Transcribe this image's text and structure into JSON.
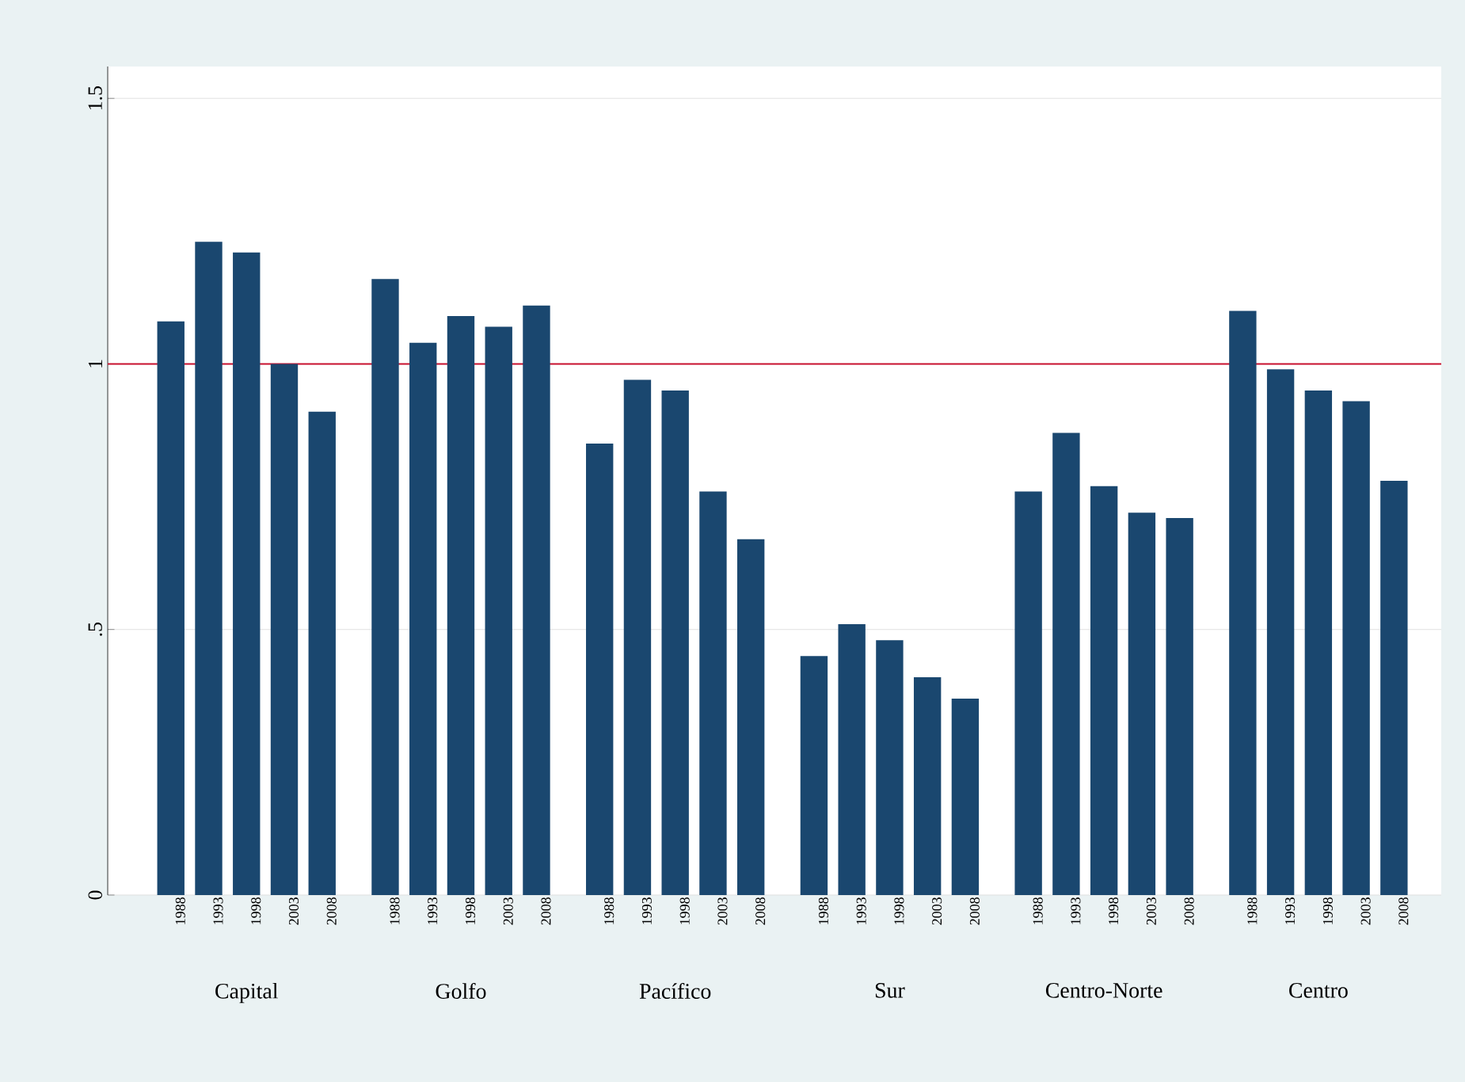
{
  "chart_data": {
    "type": "bar",
    "categories": [
      "Capital",
      "Golfo",
      "Pacífico",
      "Sur",
      "Centro-Norte",
      "Centro"
    ],
    "series": [
      {
        "name": "1988",
        "color": "#1a476f",
        "values": [
          1.08,
          1.16,
          0.85,
          0.45,
          0.76,
          1.1
        ]
      },
      {
        "name": "1993",
        "color": "#1a476f",
        "values": [
          1.23,
          1.04,
          0.97,
          0.51,
          0.87,
          0.99
        ]
      },
      {
        "name": "1998",
        "color": "#1a476f",
        "values": [
          1.21,
          1.09,
          0.95,
          0.48,
          0.77,
          0.95
        ]
      },
      {
        "name": "2003",
        "color": "#1a476f",
        "values": [
          1.0,
          1.07,
          0.76,
          0.41,
          0.72,
          0.93
        ]
      },
      {
        "name": "2008",
        "color": "#1a476f",
        "values": [
          0.91,
          1.11,
          0.67,
          0.37,
          0.71,
          0.78
        ]
      }
    ],
    "ylim": [
      0,
      1.56
    ],
    "yticks": [
      0,
      {
        "value": 0.5,
        "label": ".5"
      },
      1,
      1.5
    ],
    "grid": "y",
    "ref_lines": [
      {
        "axis": "y",
        "value": 1,
        "color": "#c8102e"
      }
    ]
  }
}
